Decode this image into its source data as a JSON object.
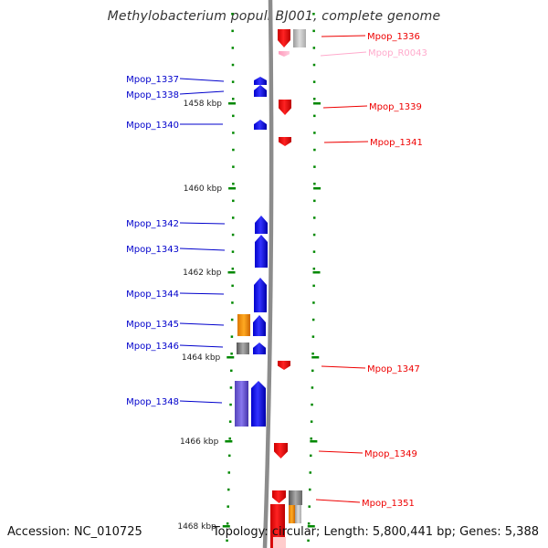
{
  "title": "Methylobacterium populi BJ001, complete genome",
  "footer": {
    "accession": "Accession: NC_010725",
    "topology": "Topology: circular; Length: 5,800,441 bp; Genes: 5,388"
  },
  "colors": {
    "forward_gene": "#0000ee",
    "reverse_gene": "#ee0000",
    "rna_gene": "#ffaacc",
    "tick": "#008800",
    "backbone": "#888888",
    "orange_feature": "#ff9900",
    "gray_feature": "#777777",
    "slate_feature": "#6655cc"
  },
  "scale_labels": [
    "1458 kbp",
    "1460 kbp",
    "1462 kbp",
    "1464 kbp",
    "1466 kbp",
    "1468 kbp"
  ],
  "left_labels": [
    "Mpop_1337",
    "Mpop_1338",
    "Mpop_1340",
    "Mpop_1342",
    "Mpop_1343",
    "Mpop_1344",
    "Mpop_1345",
    "Mpop_1346",
    "Mpop_1348"
  ],
  "right_labels": [
    "Mpop_1336",
    "Mpop_R0043",
    "Mpop_1339",
    "Mpop_1341",
    "Mpop_1347",
    "Mpop_1349",
    "Mpop_1351"
  ]
}
